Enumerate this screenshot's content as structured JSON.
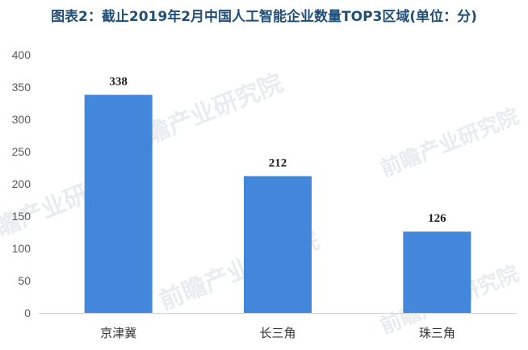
{
  "chart_data": {
    "type": "bar",
    "title": "图表2：截止2019年2月中国人工智能企业数量TOP3区域(单位：分)",
    "categories": [
      "京津冀",
      "长三角",
      "珠三角"
    ],
    "values": [
      338,
      212,
      126
    ],
    "data_labels": [
      "338",
      "212",
      "126"
    ],
    "xlabel": "",
    "ylabel": "",
    "ylim": [
      0,
      400
    ],
    "yticks": [
      0,
      50,
      100,
      150,
      200,
      250,
      300,
      350,
      400
    ],
    "grid": false,
    "legend": "none",
    "bar_color": "#4287dc"
  },
  "watermark": {
    "text": "前瞻产业研究院"
  }
}
